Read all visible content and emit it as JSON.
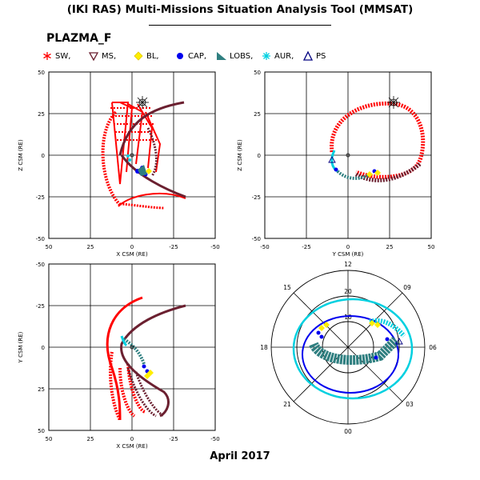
{
  "header": {
    "title": "(IKI RAS) Multi-Missions Situation Analysis Tool (MMSAT)",
    "mission": "PLAZMA_F"
  },
  "legend": {
    "items": [
      {
        "label": "SW,",
        "icon": "asterisk-icon",
        "color": "#ff0000"
      },
      {
        "label": "MS,",
        "icon": "inverted-triangle-icon",
        "color": "#6b2030"
      },
      {
        "label": "BL,",
        "icon": "diamond-icon",
        "color": "#ffee00"
      },
      {
        "label": "CAP,",
        "icon": "dot-icon",
        "color": "#0000ee"
      },
      {
        "label": "LOBS,",
        "icon": "filled-triangle-icon",
        "color": "#2f7f80"
      },
      {
        "label": "AUR,",
        "icon": "asterisk-icon",
        "color": "#00d0e0"
      },
      {
        "label": "PS",
        "icon": "triangle-outline-icon",
        "color": "#000080"
      }
    ]
  },
  "panels": {
    "xz": {
      "xlabel": "X CSM (RE)",
      "ylabel": "Z CSM (RE)",
      "xticks": [
        "50",
        "25",
        "0",
        "-25",
        "-50"
      ],
      "yticks": [
        "50",
        "25",
        "0",
        "-25",
        "-50"
      ]
    },
    "yz": {
      "xlabel": "Y CSM (RE)",
      "ylabel": "Z CSM (RE)",
      "xticks": [
        "-50",
        "-25",
        "0",
        "25",
        "50"
      ],
      "yticks": [
        "50",
        "25",
        "0",
        "-25",
        "-50"
      ]
    },
    "xy": {
      "xlabel": "X CSM (RE)",
      "ylabel": "Y CSM (RE)",
      "xticks": [
        "50",
        "25",
        "0",
        "-25",
        "-50"
      ],
      "yticks": [
        "-50",
        "-25",
        "0",
        "25",
        "50"
      ]
    },
    "polar": {
      "hours": [
        "12",
        "09",
        "06",
        "03",
        "00",
        "21",
        "18",
        "15"
      ],
      "radii": [
        "10",
        "20"
      ]
    }
  },
  "footer": {
    "date": "April 2017"
  }
}
